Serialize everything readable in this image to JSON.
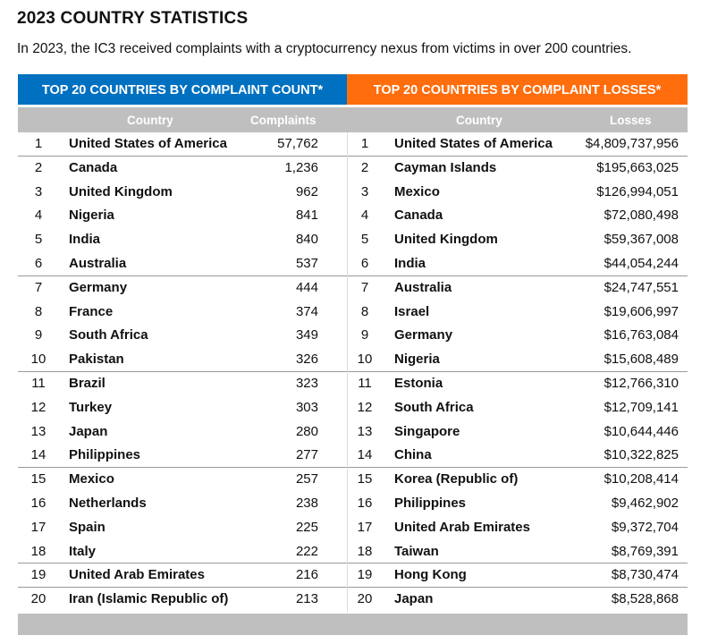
{
  "title": "2023 COUNTRY STATISTICS",
  "subtitle": "In 2023, the IC3 received complaints with a cryptocurrency nexus from victims in over 200 countries.",
  "left_table": {
    "header": "TOP 20 COUNTRIES BY COMPLAINT COUNT*",
    "col_country": "Country",
    "col_value": "Complaints",
    "rows": [
      {
        "rank": "1",
        "country": "United States of America",
        "value": "57,762"
      },
      {
        "rank": "2",
        "country": "Canada",
        "value": "1,236"
      },
      {
        "rank": "3",
        "country": "United Kingdom",
        "value": "962"
      },
      {
        "rank": "4",
        "country": "Nigeria",
        "value": "841"
      },
      {
        "rank": "5",
        "country": "India",
        "value": "840"
      },
      {
        "rank": "6",
        "country": "Australia",
        "value": "537"
      },
      {
        "rank": "7",
        "country": "Germany",
        "value": "444"
      },
      {
        "rank": "8",
        "country": "France",
        "value": "374"
      },
      {
        "rank": "9",
        "country": "South Africa",
        "value": "349"
      },
      {
        "rank": "10",
        "country": "Pakistan",
        "value": "326"
      },
      {
        "rank": "11",
        "country": "Brazil",
        "value": "323"
      },
      {
        "rank": "12",
        "country": "Turkey",
        "value": "303"
      },
      {
        "rank": "13",
        "country": "Japan",
        "value": "280"
      },
      {
        "rank": "14",
        "country": "Philippines",
        "value": "277"
      },
      {
        "rank": "15",
        "country": "Mexico",
        "value": "257"
      },
      {
        "rank": "16",
        "country": "Netherlands",
        "value": "238"
      },
      {
        "rank": "17",
        "country": "Spain",
        "value": "225"
      },
      {
        "rank": "18",
        "country": "Italy",
        "value": "222"
      },
      {
        "rank": "19",
        "country": "United Arab Emirates",
        "value": "216"
      },
      {
        "rank": "20",
        "country": "Iran (Islamic Republic of)",
        "value": "213"
      }
    ]
  },
  "right_table": {
    "header": "TOP 20 COUNTRIES BY COMPLAINT LOSSES*",
    "col_country": "Country",
    "col_value": "Losses",
    "rows": [
      {
        "rank": "1",
        "country": "United States of America",
        "value": "$4,809,737,956"
      },
      {
        "rank": "2",
        "country": "Cayman Islands",
        "value": "$195,663,025"
      },
      {
        "rank": "3",
        "country": "Mexico",
        "value": "$126,994,051"
      },
      {
        "rank": "4",
        "country": "Canada",
        "value": "$72,080,498"
      },
      {
        "rank": "5",
        "country": "United Kingdom",
        "value": "$59,367,008"
      },
      {
        "rank": "6",
        "country": "India",
        "value": "$44,054,244"
      },
      {
        "rank": "7",
        "country": "Australia",
        "value": "$24,747,551"
      },
      {
        "rank": "8",
        "country": "Israel",
        "value": "$19,606,997"
      },
      {
        "rank": "9",
        "country": "Germany",
        "value": "$16,763,084"
      },
      {
        "rank": "10",
        "country": "Nigeria",
        "value": "$15,608,489"
      },
      {
        "rank": "11",
        "country": "Estonia",
        "value": "$12,766,310"
      },
      {
        "rank": "12",
        "country": "South Africa",
        "value": "$12,709,141"
      },
      {
        "rank": "13",
        "country": "Singapore",
        "value": "$10,644,446"
      },
      {
        "rank": "14",
        "country": "China",
        "value": "$10,322,825"
      },
      {
        "rank": "15",
        "country": "Korea (Republic of)",
        "value": "$10,208,414"
      },
      {
        "rank": "16",
        "country": "Philippines",
        "value": "$9,462,902"
      },
      {
        "rank": "17",
        "country": "United Arab Emirates",
        "value": "$9,372,704"
      },
      {
        "rank": "18",
        "country": "Taiwan",
        "value": "$8,769,391"
      },
      {
        "rank": "19",
        "country": "Hong Kong",
        "value": "$8,730,474"
      },
      {
        "rank": "20",
        "country": "Japan",
        "value": "$8,528,868"
      }
    ]
  },
  "colors": {
    "left_header": "#0070c0",
    "right_header": "#ff6d0c",
    "column_header": "#bfbfbf"
  }
}
